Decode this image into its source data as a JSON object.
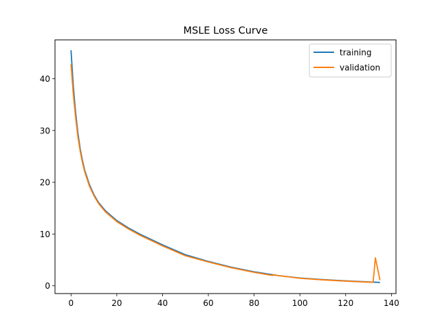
{
  "chart_data": {
    "type": "line",
    "title": "MSLE Loss Curve",
    "xlabel": "",
    "ylabel": "",
    "xlim": [
      -7,
      142
    ],
    "ylim": [
      -1.5,
      47.5
    ],
    "xticks": [
      0,
      20,
      40,
      60,
      80,
      100,
      120,
      140
    ],
    "yticks": [
      0,
      10,
      20,
      30,
      40
    ],
    "grid": false,
    "legend_position": "top-right",
    "series": [
      {
        "name": "training",
        "color": "#1f77b4",
        "x": [
          0,
          1,
          2,
          3,
          4,
          5,
          6,
          8,
          10,
          12,
          15,
          20,
          25,
          30,
          40,
          50,
          60,
          70,
          80,
          90,
          100,
          110,
          120,
          130,
          135
        ],
        "y": [
          45.5,
          38.5,
          33.5,
          29.5,
          26.5,
          24.2,
          22.3,
          19.6,
          17.6,
          16.1,
          14.5,
          12.6,
          11.2,
          10.0,
          7.9,
          6.0,
          4.7,
          3.6,
          2.7,
          2.0,
          1.5,
          1.2,
          0.95,
          0.75,
          0.65
        ]
      },
      {
        "name": "validation",
        "color": "#ff7f0e",
        "x": [
          0,
          1,
          2,
          3,
          4,
          5,
          6,
          8,
          10,
          12,
          15,
          20,
          25,
          30,
          40,
          50,
          60,
          70,
          80,
          88,
          89,
          90,
          100,
          110,
          120,
          130,
          132,
          133,
          135
        ],
        "y": [
          42.8,
          37.0,
          32.5,
          28.8,
          26.0,
          23.8,
          22.0,
          19.3,
          17.4,
          15.9,
          14.3,
          12.4,
          11.0,
          9.8,
          7.7,
          5.8,
          4.6,
          3.5,
          2.6,
          2.0,
          2.15,
          2.0,
          1.45,
          1.15,
          0.9,
          0.7,
          0.7,
          5.4,
          1.1
        ]
      }
    ]
  }
}
